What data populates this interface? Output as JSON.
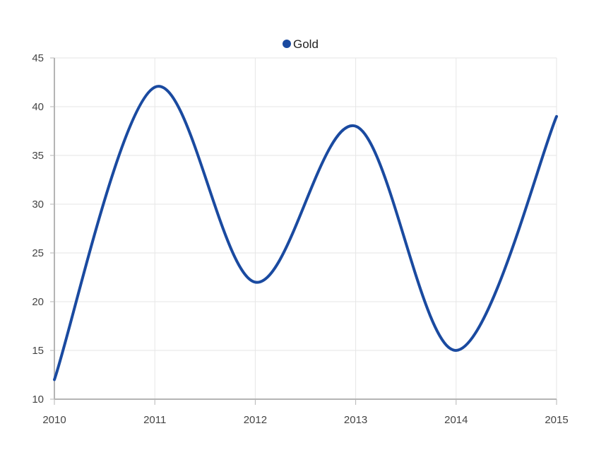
{
  "chart_data": {
    "type": "line",
    "title": "",
    "xlabel": "",
    "ylabel": "",
    "x": [
      2010,
      2011,
      2012,
      2013,
      2014,
      2015
    ],
    "x_tick_labels": [
      "2010",
      "2011",
      "2012",
      "2013",
      "2014",
      "2015"
    ],
    "y_tick_labels": [
      "10",
      "15",
      "20",
      "25",
      "30",
      "35",
      "40",
      "45"
    ],
    "xlim": [
      2010,
      2015
    ],
    "ylim": [
      10,
      45
    ],
    "y_ticks": [
      10,
      15,
      20,
      25,
      30,
      35,
      40,
      45
    ],
    "grid": true,
    "smooth": true,
    "legend_position": "top-center",
    "series": [
      {
        "name": "Gold",
        "color": "#1a4aa0",
        "values": [
          12,
          42,
          22,
          38,
          15,
          39
        ]
      }
    ]
  }
}
